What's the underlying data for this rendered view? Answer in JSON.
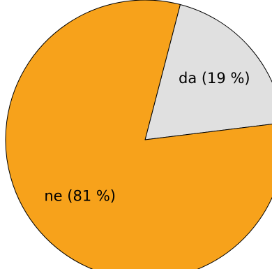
{
  "chart_data": {
    "type": "pie",
    "slices": [
      {
        "label": "da (19 %)",
        "value": 19,
        "color": "#e0e0e0"
      },
      {
        "label": "ne (81 %)",
        "value": 81,
        "color": "#f7a21b"
      }
    ]
  }
}
